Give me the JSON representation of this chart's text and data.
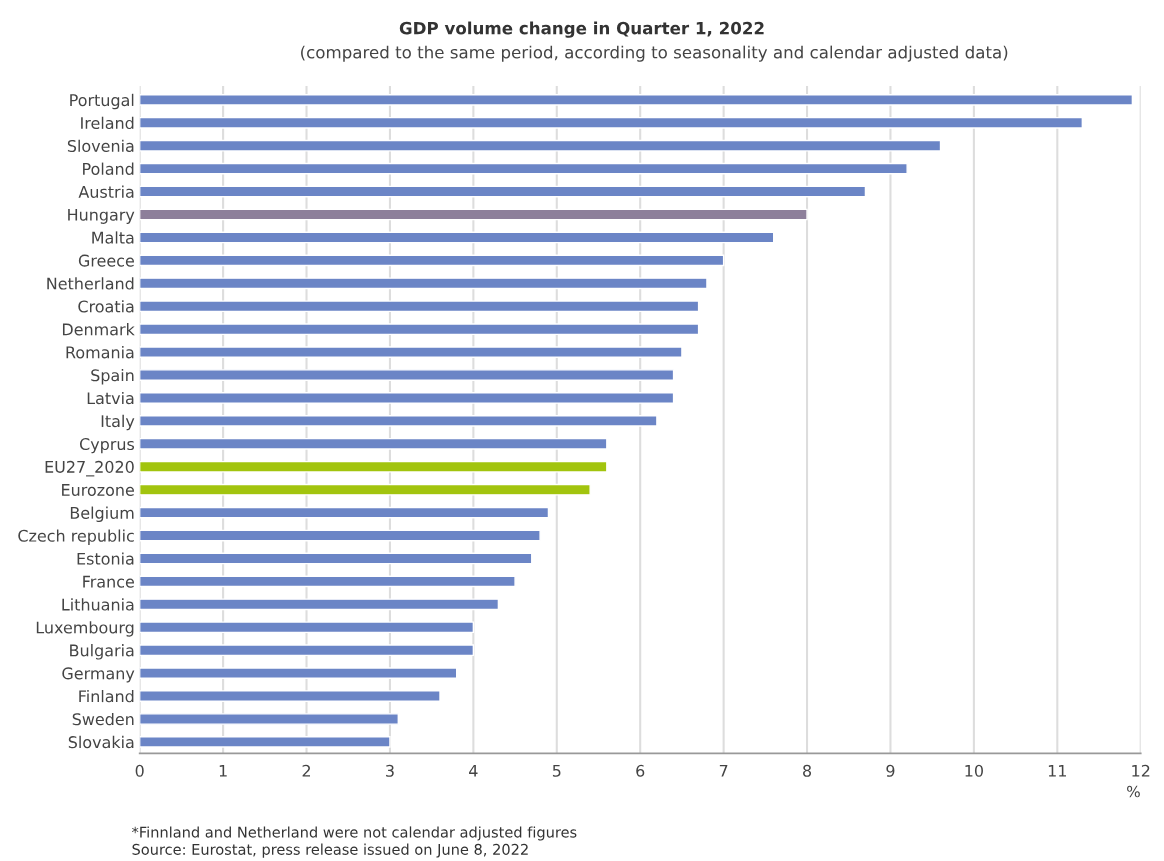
{
  "chart_data": {
    "type": "bar",
    "orientation": "horizontal",
    "title": "GDP volume change in Quarter 1, 2022",
    "subtitle": "(compared to the same period, according to seasonality and calendar adjusted data)",
    "xlabel": "%",
    "categories": [
      "Portugal",
      "Ireland",
      "Slovenia",
      "Poland",
      "Austria",
      "Hungary",
      "Malta",
      "Greece",
      "Netherland",
      "Croatia",
      "Denmark",
      "Romania",
      "Spain",
      "Latvia",
      "Italy",
      "Cyprus",
      "EU27_2020",
      "Eurozone",
      "Belgium",
      "Czech republic",
      "Estonia",
      "France",
      "Lithuania",
      "Luxembourg",
      "Bulgaria",
      "Germany",
      "Finland",
      "Sweden",
      "Slovakia"
    ],
    "values": [
      11.9,
      11.3,
      9.6,
      9.2,
      8.7,
      8.0,
      7.6,
      7.0,
      6.8,
      6.7,
      6.7,
      6.5,
      6.4,
      6.4,
      6.2,
      5.6,
      5.6,
      5.4,
      4.9,
      4.8,
      4.7,
      4.5,
      4.3,
      4.0,
      4.0,
      3.8,
      3.6,
      3.1,
      3.0
    ],
    "colors": [
      "#6b85c6",
      "#6b85c6",
      "#6b85c6",
      "#6b85c6",
      "#6b85c6",
      "#8d7f9a",
      "#6b85c6",
      "#6b85c6",
      "#6b85c6",
      "#6b85c6",
      "#6b85c6",
      "#6b85c6",
      "#6b85c6",
      "#6b85c6",
      "#6b85c6",
      "#6b85c6",
      "#a2c40e",
      "#a2c40e",
      "#6b85c6",
      "#6b85c6",
      "#6b85c6",
      "#6b85c6",
      "#6b85c6",
      "#6b85c6",
      "#6b85c6",
      "#6b85c6",
      "#6b85c6",
      "#6b85c6",
      "#6b85c6"
    ],
    "xlim": [
      0,
      12
    ],
    "xticks": [
      0,
      1,
      2,
      3,
      4,
      5,
      6,
      7,
      8,
      9,
      10,
      11,
      12
    ],
    "grid": "x",
    "legend": false,
    "annotations": [
      "*Finnland and Netherland were not calendar adjusted figures",
      "Source: Eurostat, press release issued on June 8, 2022"
    ]
  }
}
